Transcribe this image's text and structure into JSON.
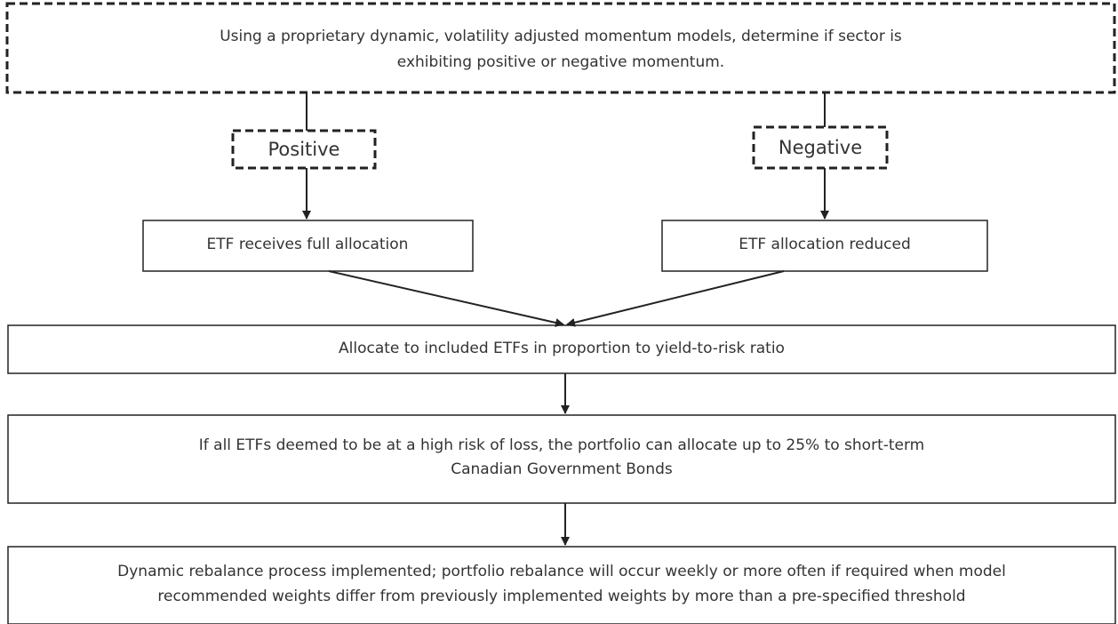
{
  "nodes": [
    {
      "label": [
        "Using a proprietary dynamic, volatility adjusted momentum models, determine if sector is",
        "exhibiting positive or negative momentum."
      ]
    },
    {
      "label": [
        "Positive"
      ]
    },
    {
      "label": [
        "Negative"
      ]
    },
    {
      "label": [
        "ETF receives full allocation"
      ]
    },
    {
      "label": [
        "ETF allocation reduced"
      ]
    },
    {
      "label": [
        "Allocate to included ETFs in proportion to yield-to-risk ratio"
      ]
    },
    {
      "label": [
        "If all ETFs deemed to be at a high risk of loss, the portfolio can allocate up to 25% to short-term",
        "Canadian Government Bonds"
      ]
    },
    {
      "label": [
        "Dynamic rebalance process implemented; portfolio rebalance will occur weekly or more often if required when model",
        "recommended weights differ from previously implemented weights by more than a pre-specified threshold"
      ]
    }
  ]
}
